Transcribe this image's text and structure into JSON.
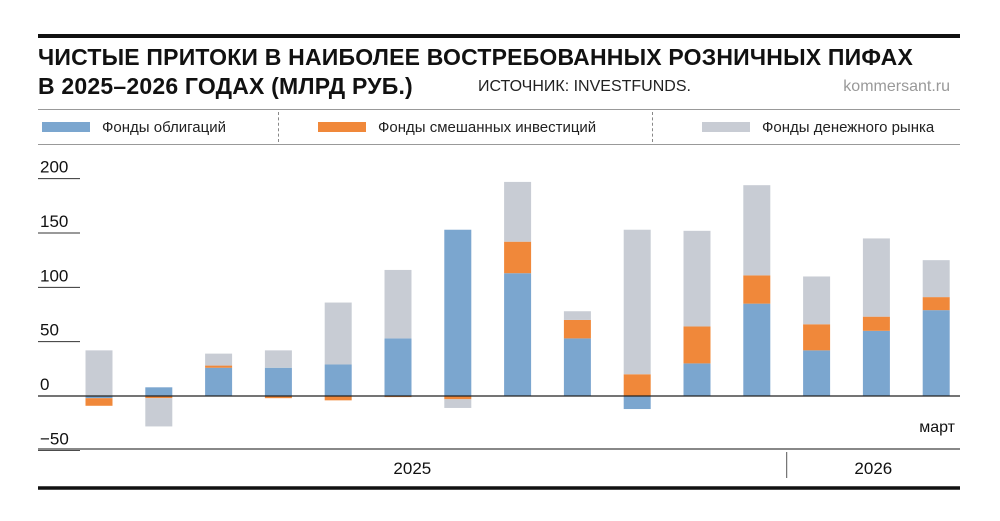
{
  "header": {
    "title_line1": "ЧИСТЫЕ ПРИТОКИ В НАИБОЛЕЕ ВОСТРЕБОВАННЫХ РОЗНИЧНЫХ ПИФАХ",
    "title_line2": "В 2025–2026 ГОДАХ (МЛРД РУБ.)",
    "source": "ИСТОЧНИК: INVESTFUNDS.",
    "brand": "kommersant.ru"
  },
  "chart_data": {
    "type": "bar",
    "stacked": true,
    "title": "ЧИСТЫЕ ПРИТОКИ В НАИБОЛЕЕ ВОСТРЕБОВАННЫХ РОЗНИЧНЫХ ПИФАХ В 2025–2026 ГОДАХ (МЛРД РУБ.)",
    "ylim": [
      -50,
      200
    ],
    "yticks": [
      200,
      150,
      100,
      50,
      0,
      -50
    ],
    "ytick_labels": [
      "200",
      "150",
      "100",
      "50",
      "0",
      "−50"
    ],
    "groups": [
      {
        "label": "2025",
        "count": 12
      },
      {
        "label": "2026",
        "count": 3
      }
    ],
    "last_category_label": "март",
    "legend_position": "top",
    "series": [
      {
        "name": "Фонды облигаций",
        "color": "#7ba6cf",
        "values": [
          -2,
          8,
          26,
          26,
          29,
          53,
          153,
          113,
          53,
          -12,
          30,
          85,
          42,
          60,
          79
        ]
      },
      {
        "name": "Фонды смешанных инвестиций",
        "color": "#f0883a",
        "values": [
          -7,
          -2,
          2,
          -2,
          -4,
          -1,
          -3,
          29,
          17,
          20,
          34,
          26,
          24,
          13,
          12
        ]
      },
      {
        "name": "Фонды денежного рынка",
        "color": "#c8ccd4",
        "values": [
          42,
          -26,
          11,
          16,
          57,
          63,
          -8,
          55,
          8,
          133,
          88,
          83,
          44,
          72,
          34
        ]
      }
    ]
  }
}
